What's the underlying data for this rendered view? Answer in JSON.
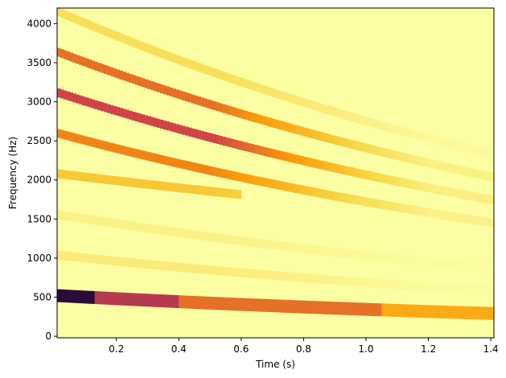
{
  "chart_data": {
    "type": "heatmap",
    "xlabel": "Time (s)",
    "ylabel": "Frequency (Hz)",
    "xlim": [
      0.01,
      1.41
    ],
    "ylim": [
      -20,
      4200
    ],
    "x_ticks": [
      "0.2",
      "0.4",
      "0.6",
      "0.8",
      "1.0",
      "1.2",
      "1.4"
    ],
    "y_ticks": [
      "0",
      "500",
      "1000",
      "1500",
      "2000",
      "2500",
      "3000",
      "3500",
      "4000"
    ],
    "grid": false,
    "colormap": "inferno_r",
    "background_color": "#fcfea4",
    "harmonics": [
      {
        "harmonic": 1,
        "time_range": [
          0.01,
          1.41
        ],
        "freq_start": 520,
        "freq_end": 290,
        "peak_intensity": 0.95
      },
      {
        "harmonic": 2,
        "time_range": [
          0.01,
          1.41
        ],
        "freq_start": 1040,
        "freq_end": 580,
        "peak_intensity": 0.12
      },
      {
        "harmonic": 3,
        "time_range": [
          0.01,
          1.41
        ],
        "freq_start": 1560,
        "freq_end": 870,
        "peak_intensity": 0.08
      },
      {
        "harmonic": 4,
        "time_range": [
          0.01,
          0.6
        ],
        "freq_start": 2080,
        "freq_end": 1500,
        "peak_intensity": 0.3
      },
      {
        "harmonic": 5,
        "time_range": [
          0.01,
          1.41
        ],
        "freq_start": 2600,
        "freq_end": 1450,
        "peak_intensity": 0.5
      },
      {
        "harmonic": 6,
        "time_range": [
          0.01,
          1.41
        ],
        "freq_start": 3120,
        "freq_end": 1740,
        "peak_intensity": 0.65
      },
      {
        "harmonic": 7,
        "time_range": [
          0.01,
          1.41
        ],
        "freq_start": 3640,
        "freq_end": 2030,
        "peak_intensity": 0.55
      },
      {
        "harmonic": 8,
        "time_range": [
          0.01,
          1.41
        ],
        "freq_start": 4160,
        "freq_end": 2320,
        "peak_intensity": 0.2
      }
    ]
  }
}
